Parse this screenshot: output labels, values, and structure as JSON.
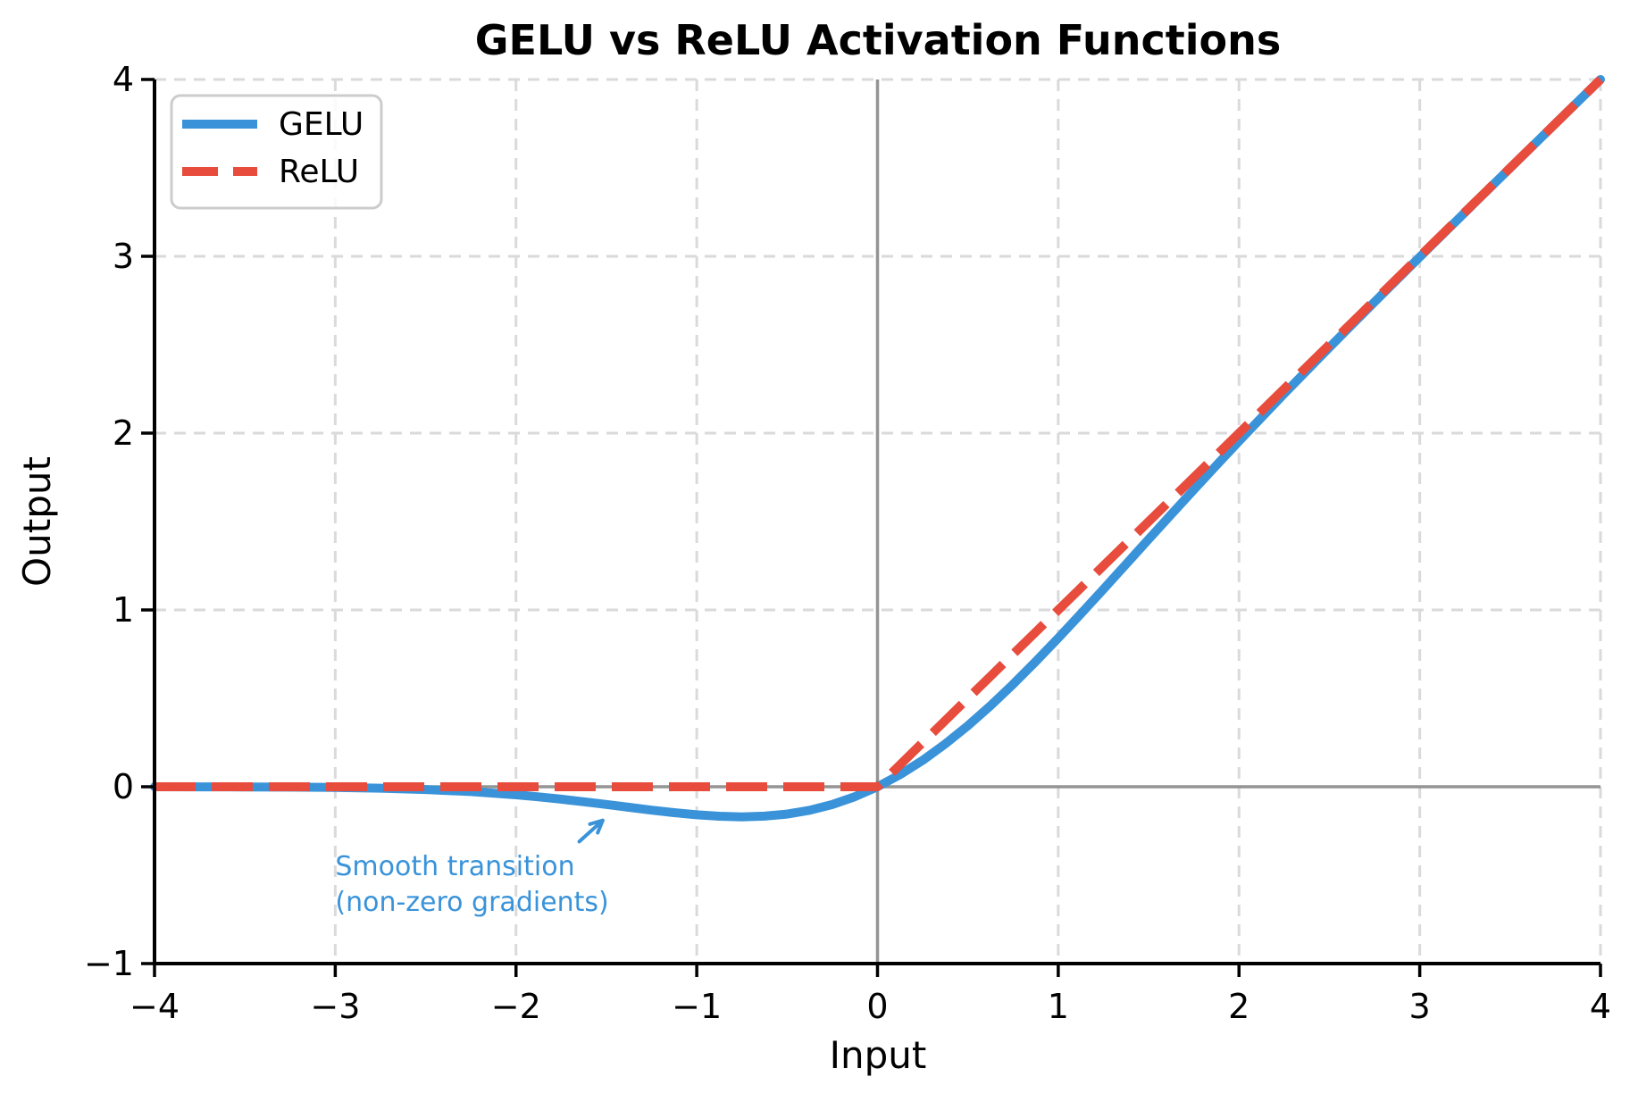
{
  "chart_data": {
    "type": "line",
    "title": "GELU vs ReLU Activation Functions",
    "xlabel": "Input",
    "ylabel": "Output",
    "xlim": [
      -4,
      4
    ],
    "ylim": [
      -1,
      4
    ],
    "xticks": [
      -4,
      -3,
      -2,
      -1,
      0,
      1,
      2,
      3,
      4
    ],
    "xtick_labels": [
      "−4",
      "−3",
      "−2",
      "−1",
      "0",
      "1",
      "2",
      "3",
      "4"
    ],
    "yticks": [
      -1,
      0,
      1,
      2,
      3,
      4
    ],
    "ytick_labels": [
      "−1",
      "0",
      "1",
      "2",
      "3",
      "4"
    ],
    "grid": true,
    "grid_style": "dashed",
    "zero_lines": true,
    "legend_position": "upper left",
    "x": [
      -4,
      -3.75,
      -3.5,
      -3.25,
      -3,
      -2.75,
      -2.5,
      -2.25,
      -2,
      -1.875,
      -1.75,
      -1.625,
      -1.5,
      -1.375,
      -1.25,
      -1.125,
      -1,
      -0.875,
      -0.75,
      -0.625,
      -0.5,
      -0.375,
      -0.25,
      -0.125,
      0,
      0.125,
      0.25,
      0.375,
      0.5,
      0.625,
      0.75,
      0.875,
      1,
      1.125,
      1.25,
      1.375,
      1.5,
      1.625,
      1.75,
      1.875,
      2,
      2.25,
      2.5,
      2.75,
      3,
      3.25,
      3.5,
      3.75,
      4
    ],
    "series": [
      {
        "name": "GELU",
        "style": "solid",
        "color": "#3a93d9",
        "values": [
          -0.0001,
          -0.0003,
          -0.0008,
          -0.0019,
          -0.004,
          -0.0082,
          -0.0155,
          -0.0275,
          -0.0455,
          -0.057,
          -0.0701,
          -0.0846,
          -0.1002,
          -0.1163,
          -0.1321,
          -0.1466,
          -0.1587,
          -0.1669,
          -0.17,
          -0.1662,
          -0.1543,
          -0.1327,
          -0.1003,
          -0.0563,
          0,
          0.0687,
          0.1497,
          0.2423,
          0.3457,
          0.4588,
          0.58,
          0.7081,
          0.8413,
          0.9783,
          1.1179,
          1.2587,
          1.3998,
          1.5404,
          1.6799,
          1.818,
          1.9545,
          2.2225,
          2.4845,
          2.7418,
          2.996,
          3.2481,
          3.4992,
          3.7497,
          3.9999
        ]
      },
      {
        "name": "ReLU",
        "style": "dashed",
        "color": "#e74c3c",
        "values": [
          0,
          0,
          0,
          0,
          0,
          0,
          0,
          0,
          0,
          0,
          0,
          0,
          0,
          0,
          0,
          0,
          0,
          0,
          0,
          0,
          0,
          0,
          0,
          0,
          0,
          0.125,
          0.25,
          0.375,
          0.5,
          0.625,
          0.75,
          0.875,
          1,
          1.125,
          1.25,
          1.375,
          1.5,
          1.625,
          1.75,
          1.875,
          2,
          2.25,
          2.5,
          2.75,
          3,
          3.25,
          3.5,
          3.75,
          4
        ]
      }
    ],
    "annotation": {
      "text_line1": "Smooth transition",
      "text_line2": "(non-zero gradients)",
      "color": "#3a93d9",
      "xytext": [
        -3.0,
        -0.5
      ],
      "arrow_from": [
        -1.65,
        -0.31
      ],
      "arrow_to": [
        -1.52,
        -0.19
      ]
    },
    "colors": {
      "grid": "#dadada",
      "zero_line": "#949494",
      "axis": "#000000",
      "legend_border": "#cccccc"
    }
  }
}
